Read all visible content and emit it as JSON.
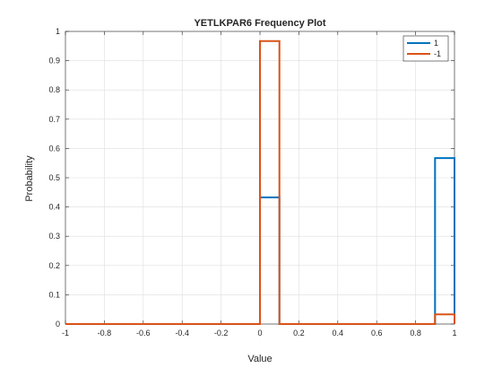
{
  "chart_data": {
    "type": "line",
    "title": "YETLKPAR6 Frequency Plot",
    "xlabel": "Value",
    "ylabel": "Probability",
    "xlim": [
      -1,
      1
    ],
    "ylim": [
      0,
      1
    ],
    "xticks": [
      -1,
      -0.8,
      -0.6,
      -0.4,
      -0.2,
      0,
      0.2,
      0.4,
      0.6,
      0.8,
      1
    ],
    "yticks": [
      0,
      0.1,
      0.2,
      0.3,
      0.4,
      0.5,
      0.6,
      0.7,
      0.8,
      0.9,
      1
    ],
    "xtick_labels": [
      "-1",
      "-0.8",
      "-0.6",
      "-0.4",
      "-0.2",
      "0",
      "0.2",
      "0.4",
      "0.6",
      "0.8",
      "1"
    ],
    "ytick_labels": [
      "0",
      "0.1",
      "0.2",
      "0.3",
      "0.4",
      "0.5",
      "0.6",
      "0.7",
      "0.8",
      "0.9",
      "1"
    ],
    "grid": true,
    "legend_position": "top-right",
    "series": [
      {
        "name": "1",
        "color": "#0072BD",
        "x": [
          -1,
          0,
          0,
          0.1,
          0.1,
          0.9,
          0.9,
          1,
          1
        ],
        "y": [
          0,
          0,
          0.433,
          0.433,
          0,
          0,
          0.567,
          0.567,
          0
        ]
      },
      {
        "name": "-1",
        "color": "#D95319",
        "x": [
          -1,
          0,
          0,
          0.1,
          0.1,
          0.9,
          0.9,
          1,
          1
        ],
        "y": [
          0,
          0,
          0.967,
          0.967,
          0,
          0,
          0.033,
          0.033,
          0
        ]
      }
    ]
  }
}
